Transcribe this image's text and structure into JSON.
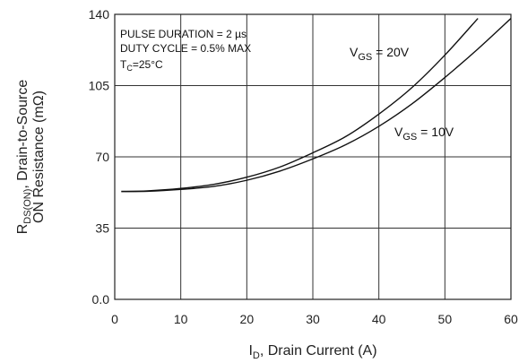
{
  "chart_data": {
    "type": "line",
    "title": "",
    "xlabel": "I",
    "xlabel_sub": "D",
    "xlabel_rest": ", Drain Current (A)",
    "ylabel_line1_main": "R",
    "ylabel_line1_sub": "DS(ON)",
    "ylabel_line1_rest": ", Drain-to-Source",
    "ylabel_line2": "ON Resistance (mΩ)",
    "xlim": [
      0,
      60
    ],
    "ylim": [
      0,
      140
    ],
    "xticks": [
      "0",
      "10",
      "20",
      "30",
      "40",
      "50",
      "60"
    ],
    "yticks": [
      "0.0",
      "35",
      "70",
      "105",
      "140"
    ],
    "grid": true,
    "annotations": {
      "line1": "PULSE DURATION = 2 µs",
      "line2": "DUTY CYCLE = 0.5% MAX",
      "line3_main": "T",
      "line3_sub": "C",
      "line3_rest": "=25°C"
    },
    "series": [
      {
        "name_main": "V",
        "name_sub": "GS",
        "name_rest": " = 20V",
        "x": [
          1,
          5,
          10,
          15,
          20,
          25,
          30,
          35,
          40,
          45,
          50,
          55
        ],
        "y": [
          53,
          53.3,
          54.5,
          56.5,
          60,
          65,
          72,
          80,
          91,
          104,
          120,
          138
        ]
      },
      {
        "name_main": "V",
        "name_sub": "GS",
        "name_rest": " = 10V",
        "x": [
          1,
          5,
          10,
          15,
          20,
          25,
          30,
          35,
          40,
          45,
          50,
          55,
          60
        ],
        "y": [
          53,
          53.1,
          54,
          55.5,
          58.5,
          63,
          69,
          76,
          85,
          96,
          109,
          123,
          138
        ]
      }
    ]
  }
}
